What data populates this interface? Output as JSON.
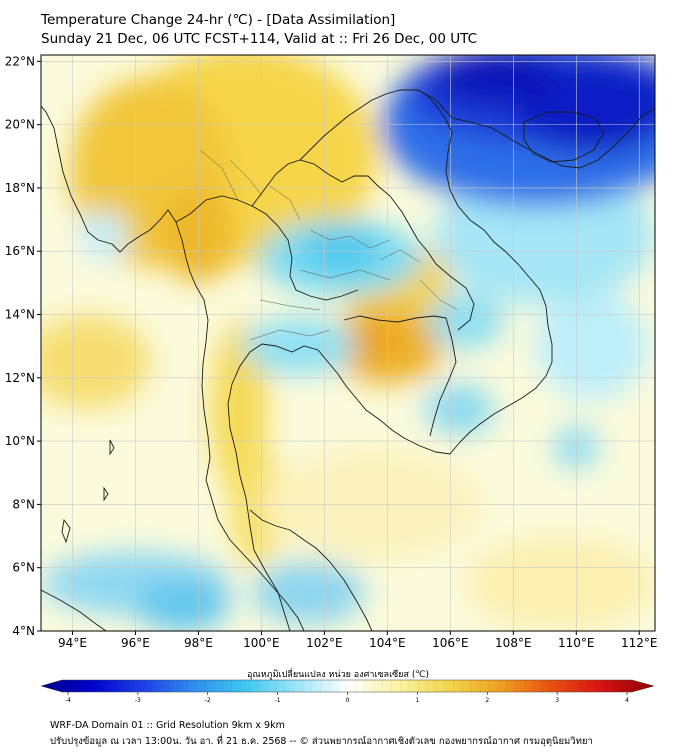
{
  "header": {
    "title_line1": "Temperature Change 24-hr (℃) - [Data Assimilation]",
    "title_line2": "Sunday 21 Dec, 06 UTC FCST+114, Valid at :: Fri 26 Dec, 00 UTC"
  },
  "map": {
    "lon_range": [
      93,
      112.5
    ],
    "lat_range": [
      4,
      22.2
    ],
    "lat_ticks": [
      {
        "value": 22,
        "label": "22°N"
      },
      {
        "value": 20,
        "label": "20°N"
      },
      {
        "value": 18,
        "label": "18°N"
      },
      {
        "value": 16,
        "label": "16°N"
      },
      {
        "value": 14,
        "label": "14°N"
      },
      {
        "value": 12,
        "label": "12°N"
      },
      {
        "value": 10,
        "label": "10°N"
      },
      {
        "value": 8,
        "label": "8°N"
      },
      {
        "value": 6,
        "label": "6°N"
      },
      {
        "value": 4,
        "label": "4°N"
      }
    ],
    "lon_ticks": [
      {
        "value": 94,
        "label": "94°E"
      },
      {
        "value": 96,
        "label": "96°E"
      },
      {
        "value": 98,
        "label": "98°E"
      },
      {
        "value": 100,
        "label": "100°E"
      },
      {
        "value": 102,
        "label": "102°E"
      },
      {
        "value": 104,
        "label": "104°E"
      },
      {
        "value": 106,
        "label": "106°E"
      },
      {
        "value": 108,
        "label": "108°E"
      },
      {
        "value": 110,
        "label": "110°E"
      },
      {
        "value": 112,
        "label": "112°E"
      }
    ],
    "grid": true,
    "background_color": "#fbfbdc",
    "anomaly_blobs": [
      {
        "lon": 99.5,
        "lat": 19.0,
        "rlon": 4.2,
        "rlat": 3.5,
        "color": "#f6d54a"
      },
      {
        "lon": 96.5,
        "lat": 18.5,
        "rlon": 2.6,
        "rlat": 3.0,
        "color": "#f1c63a"
      },
      {
        "lon": 98.0,
        "lat": 16.5,
        "rlon": 1.2,
        "rlat": 1.5,
        "color": "#eeb82c"
      },
      {
        "lon": 94.5,
        "lat": 12.5,
        "rlon": 2.0,
        "rlat": 1.5,
        "color": "#f6de72"
      },
      {
        "lon": 99.3,
        "lat": 11.0,
        "rlon": 0.9,
        "rlat": 2.8,
        "color": "#f5d955"
      },
      {
        "lon": 99.8,
        "lat": 8.0,
        "rlon": 0.8,
        "rlat": 2.0,
        "color": "#f6de60"
      },
      {
        "lon": 104.2,
        "lat": 15.0,
        "rlon": 1.8,
        "rlat": 1.3,
        "color": "#f4d04a"
      },
      {
        "lon": 104.0,
        "lat": 13.0,
        "rlon": 1.8,
        "rlat": 1.2,
        "color": "#eeb22a"
      },
      {
        "lon": 103.6,
        "lat": 13.2,
        "rlon": 0.8,
        "rlat": 0.6,
        "color": "#e9a21e"
      },
      {
        "lon": 103.5,
        "lat": 8.0,
        "rlon": 3.5,
        "rlat": 1.8,
        "color": "#fbf2bd"
      },
      {
        "lon": 109.5,
        "lat": 5.5,
        "rlon": 3.0,
        "rlat": 1.5,
        "color": "#fbf0b0"
      },
      {
        "lon": 102.5,
        "lat": 15.8,
        "rlon": 2.6,
        "rlat": 1.2,
        "color": "#7fdcf2"
      },
      {
        "lon": 102.5,
        "lat": 16.0,
        "rlon": 1.3,
        "rlat": 0.7,
        "color": "#4cc8ee"
      },
      {
        "lon": 101.2,
        "lat": 13.0,
        "rlon": 1.8,
        "rlat": 0.9,
        "color": "#8fe0f3"
      },
      {
        "lon": 106.5,
        "lat": 13.8,
        "rlon": 1.2,
        "rlat": 0.9,
        "color": "#8fdff2"
      },
      {
        "lon": 106.3,
        "lat": 11.0,
        "rlon": 1.1,
        "rlat": 0.8,
        "color": "#8ad9f1"
      },
      {
        "lon": 110.5,
        "lat": 13.0,
        "rlon": 1.8,
        "rlat": 1.7,
        "color": "#bdeefa"
      },
      {
        "lon": 110.0,
        "lat": 9.8,
        "rlon": 0.7,
        "rlat": 0.7,
        "color": "#8fdcf2"
      },
      {
        "lon": 109.0,
        "lat": 16.5,
        "rlon": 3.5,
        "rlat": 2.2,
        "color": "#a6e6f6"
      },
      {
        "lon": 96.0,
        "lat": 5.5,
        "rlon": 3.0,
        "rlat": 1.0,
        "color": "#8fd8f1"
      },
      {
        "lon": 97.5,
        "lat": 4.8,
        "rlon": 1.5,
        "rlat": 0.8,
        "color": "#62c6ee"
      },
      {
        "lon": 101.5,
        "lat": 5.2,
        "rlon": 1.8,
        "rlat": 1.0,
        "color": "#8ed5ee"
      },
      {
        "lon": 95.0,
        "lat": 16.5,
        "rlon": 0.8,
        "rlat": 0.8,
        "color": "#c6eef9"
      },
      {
        "lon": 108.8,
        "lat": 20.0,
        "rlon": 5.0,
        "rlat": 2.6,
        "color": "#2f6fe8"
      },
      {
        "lon": 109.0,
        "lat": 21.0,
        "rlon": 4.5,
        "rlat": 1.6,
        "color": "#1f3ed8"
      },
      {
        "lon": 110.5,
        "lat": 20.5,
        "rlon": 2.5,
        "rlat": 1.4,
        "color": "#101fc4"
      },
      {
        "lon": 107.5,
        "lat": 21.5,
        "rlon": 2.0,
        "rlat": 0.9,
        "color": "#0a14b8"
      }
    ]
  },
  "colorbar": {
    "label": "อุณหภูมิเปลี่ยนแปลง หน่วย องศาเซลเซียส (℃)",
    "min": -4,
    "max": 4,
    "ticks": [
      "-4",
      "-3",
      "-2",
      "-1",
      "0",
      "1",
      "2",
      "3",
      "4"
    ],
    "stops": [
      "#00008b",
      "#0000cd",
      "#1e3fe8",
      "#2f8ff0",
      "#3ec8f0",
      "#9be6f7",
      "#ffffff",
      "#fbf3a0",
      "#f3d54a",
      "#f0a020",
      "#e85010",
      "#d81010",
      "#8b0000"
    ]
  },
  "footer": {
    "line1": "WRF-DA Domain 01 :: Grid Resolution 9km x 9km",
    "line2": "ปรับปรุงข้อมูล ณ เวลา 13:00น. วัน อา. ที่ 21 ธ.ค. 2568 -- © ส่วนพยากรณ์อากาศเชิงตัวเลข กองพยากรณ์อากาศ กรมอุตุนิยมวิทยา"
  }
}
